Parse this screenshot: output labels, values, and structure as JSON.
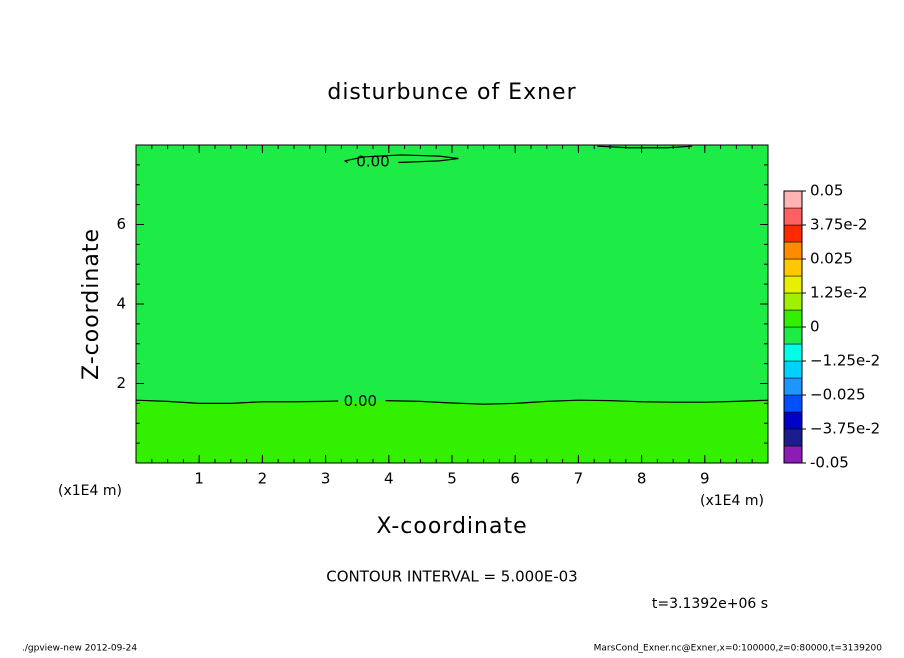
{
  "chart_data": {
    "type": "contour",
    "title": "disturbunce of Exner",
    "x_label": "X-coordinate",
    "y_label": "Z-coordinate",
    "x_unit": "(x1E4 m)",
    "xlim": [
      0,
      10
    ],
    "ylim": [
      0,
      8
    ],
    "xticks": [
      1,
      2,
      3,
      4,
      5,
      6,
      7,
      8,
      9
    ],
    "yticks": [
      2,
      4,
      6
    ],
    "colorbar": {
      "lim": [
        -0.05,
        0.05
      ],
      "ticks": [
        -0.05,
        {
          "value": -0.0375,
          "label": "−3.75e-2"
        },
        {
          "value": -0.025,
          "label": "−0.025"
        },
        {
          "value": -0.0125,
          "label": "−1.25e-2"
        },
        0,
        {
          "value": 0.0125,
          "label": "1.25e-2"
        },
        0.025,
        {
          "value": 0.0375,
          "label": "3.75e-2"
        },
        0.05
      ],
      "colors": [
        "#8c1cb4",
        "#1c1c8c",
        "#0000c8",
        "#0050ff",
        "#1e96ff",
        "#00d2ff",
        "#00ffe6",
        "#1eec46",
        "#32f000",
        "#a0f000",
        "#e6f000",
        "#ffc800",
        "#ff8c00",
        "#ff2800",
        "#ff6060",
        "#ffb4b4"
      ]
    },
    "contours": [
      {
        "level": 0,
        "label": "0.00",
        "label_x": 3.55,
        "label_z": 1.55,
        "x": [
          0,
          0.5,
          1,
          1.5,
          2,
          2.5,
          3,
          3.2,
          null,
          3.95,
          4.5,
          5,
          5.5,
          6,
          6.5,
          7,
          7.5,
          8,
          8.5,
          9,
          9.5,
          10
        ],
        "z": [
          1.58,
          1.55,
          1.5,
          1.5,
          1.54,
          1.54,
          1.55,
          1.56,
          null,
          1.57,
          1.55,
          1.51,
          1.48,
          1.5,
          1.55,
          1.58,
          1.57,
          1.54,
          1.53,
          1.53,
          1.55,
          1.58
        ]
      },
      {
        "level": 0,
        "label": "0.00",
        "label_x": 3.75,
        "label_z": 7.57,
        "x": [
          3.3,
          3.6,
          4.2,
          4.8,
          5.1,
          4.8,
          4.3,
          4.15,
          null,
          3.35,
          3.3
        ],
        "z": [
          7.6,
          7.7,
          7.75,
          7.72,
          7.66,
          7.6,
          7.57,
          7.56,
          null,
          7.56,
          7.6
        ]
      },
      {
        "level": 0,
        "x": [
          7.3,
          7.8,
          8.4,
          8.8
        ],
        "z": [
          7.97,
          7.93,
          7.93,
          7.97
        ]
      }
    ],
    "annotations": {
      "contour_interval": "CONTOUR INTERVAL = 5.000E-03",
      "time": "t=3.1392e+06 s",
      "footer_left": "./gpview-new  2012-09-24",
      "footer_right": "MarsCond_Exner.nc@Exner,x=0:100000,z=0:80000,t=3139200"
    }
  }
}
